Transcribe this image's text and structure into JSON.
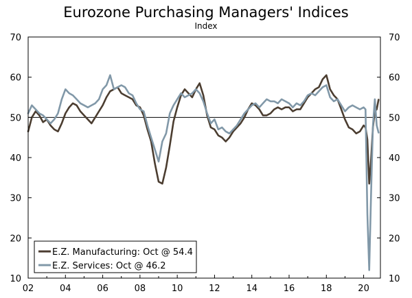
{
  "chart_data": {
    "type": "line",
    "title": "Eurozone Purchasing Managers' Indices",
    "subtitle": "Index",
    "ylim": [
      10,
      70
    ],
    "yticks": [
      10,
      20,
      30,
      40,
      50,
      60,
      70
    ],
    "xlim": [
      2002,
      2020.9
    ],
    "xticks": [
      2002,
      2004,
      2006,
      2008,
      2010,
      2012,
      2014,
      2016,
      2018,
      2020
    ],
    "xtick_labels": [
      "02",
      "04",
      "06",
      "08",
      "10",
      "12",
      "14",
      "16",
      "18",
      "20"
    ],
    "reference_line": 50,
    "dual_y_axis": true,
    "grid": false,
    "legend_position": "bottom-left",
    "series": [
      {
        "name": "E.Z. Manufacturing: Oct @ 54.4",
        "color": "#4b3d30",
        "points": [
          [
            2002.0,
            46.5
          ],
          [
            2002.2,
            50.0
          ],
          [
            2002.4,
            51.5
          ],
          [
            2002.6,
            50.5
          ],
          [
            2002.8,
            48.8
          ],
          [
            2003.0,
            49.5
          ],
          [
            2003.2,
            48.0
          ],
          [
            2003.4,
            47.0
          ],
          [
            2003.6,
            46.5
          ],
          [
            2003.8,
            48.5
          ],
          [
            2004.0,
            51.0
          ],
          [
            2004.2,
            52.5
          ],
          [
            2004.4,
            53.5
          ],
          [
            2004.6,
            53.0
          ],
          [
            2004.8,
            51.5
          ],
          [
            2005.0,
            50.5
          ],
          [
            2005.2,
            49.5
          ],
          [
            2005.4,
            48.5
          ],
          [
            2005.6,
            50.0
          ],
          [
            2005.8,
            51.5
          ],
          [
            2006.0,
            53.0
          ],
          [
            2006.2,
            55.0
          ],
          [
            2006.4,
            56.5
          ],
          [
            2006.6,
            57.0
          ],
          [
            2006.8,
            57.5
          ],
          [
            2007.0,
            56.0
          ],
          [
            2007.2,
            55.5
          ],
          [
            2007.4,
            55.0
          ],
          [
            2007.6,
            54.5
          ],
          [
            2007.8,
            53.0
          ],
          [
            2008.0,
            52.5
          ],
          [
            2008.2,
            50.5
          ],
          [
            2008.4,
            47.0
          ],
          [
            2008.6,
            44.0
          ],
          [
            2008.8,
            38.5
          ],
          [
            2009.0,
            34.0
          ],
          [
            2009.2,
            33.5
          ],
          [
            2009.4,
            37.5
          ],
          [
            2009.6,
            43.0
          ],
          [
            2009.8,
            49.0
          ],
          [
            2010.0,
            52.5
          ],
          [
            2010.2,
            55.5
          ],
          [
            2010.4,
            57.0
          ],
          [
            2010.6,
            56.0
          ],
          [
            2010.8,
            55.0
          ],
          [
            2011.0,
            57.0
          ],
          [
            2011.2,
            58.5
          ],
          [
            2011.4,
            55.5
          ],
          [
            2011.6,
            50.5
          ],
          [
            2011.8,
            47.5
          ],
          [
            2012.0,
            47.0
          ],
          [
            2012.2,
            45.5
          ],
          [
            2012.4,
            45.0
          ],
          [
            2012.6,
            44.0
          ],
          [
            2012.8,
            45.0
          ],
          [
            2013.0,
            46.5
          ],
          [
            2013.2,
            47.5
          ],
          [
            2013.4,
            48.5
          ],
          [
            2013.6,
            50.0
          ],
          [
            2013.8,
            52.0
          ],
          [
            2014.0,
            53.5
          ],
          [
            2014.2,
            53.0
          ],
          [
            2014.4,
            52.0
          ],
          [
            2014.6,
            50.5
          ],
          [
            2014.8,
            50.5
          ],
          [
            2015.0,
            51.0
          ],
          [
            2015.2,
            52.0
          ],
          [
            2015.4,
            52.5
          ],
          [
            2015.6,
            52.0
          ],
          [
            2015.8,
            52.5
          ],
          [
            2016.0,
            52.5
          ],
          [
            2016.2,
            51.5
          ],
          [
            2016.4,
            52.0
          ],
          [
            2016.6,
            52.0
          ],
          [
            2016.8,
            53.5
          ],
          [
            2017.0,
            55.0
          ],
          [
            2017.2,
            56.0
          ],
          [
            2017.4,
            57.0
          ],
          [
            2017.6,
            57.5
          ],
          [
            2017.8,
            59.5
          ],
          [
            2018.0,
            60.5
          ],
          [
            2018.2,
            57.0
          ],
          [
            2018.4,
            55.5
          ],
          [
            2018.6,
            54.5
          ],
          [
            2018.8,
            52.0
          ],
          [
            2019.0,
            49.5
          ],
          [
            2019.2,
            47.5
          ],
          [
            2019.4,
            47.0
          ],
          [
            2019.6,
            46.0
          ],
          [
            2019.8,
            46.5
          ],
          [
            2020.0,
            48.0
          ],
          [
            2020.1,
            47.5
          ],
          [
            2020.2,
            44.5
          ],
          [
            2020.3,
            33.5
          ],
          [
            2020.4,
            39.5
          ],
          [
            2020.5,
            47.5
          ],
          [
            2020.6,
            51.5
          ],
          [
            2020.7,
            52.0
          ],
          [
            2020.8,
            54.4
          ]
        ]
      },
      {
        "name": "E.Z. Services: Oct @ 46.2",
        "color": "#8198a8",
        "points": [
          [
            2002.0,
            51.0
          ],
          [
            2002.2,
            53.0
          ],
          [
            2002.4,
            52.0
          ],
          [
            2002.6,
            51.0
          ],
          [
            2002.8,
            50.5
          ],
          [
            2003.0,
            49.5
          ],
          [
            2003.2,
            48.5
          ],
          [
            2003.4,
            49.5
          ],
          [
            2003.6,
            51.0
          ],
          [
            2003.8,
            54.5
          ],
          [
            2004.0,
            57.0
          ],
          [
            2004.2,
            56.0
          ],
          [
            2004.4,
            55.5
          ],
          [
            2004.6,
            54.5
          ],
          [
            2004.8,
            53.5
          ],
          [
            2005.0,
            53.0
          ],
          [
            2005.2,
            52.5
          ],
          [
            2005.4,
            53.0
          ],
          [
            2005.6,
            53.5
          ],
          [
            2005.8,
            54.5
          ],
          [
            2006.0,
            57.0
          ],
          [
            2006.2,
            58.0
          ],
          [
            2006.4,
            60.5
          ],
          [
            2006.6,
            57.0
          ],
          [
            2006.8,
            57.5
          ],
          [
            2007.0,
            58.0
          ],
          [
            2007.2,
            57.5
          ],
          [
            2007.4,
            56.0
          ],
          [
            2007.6,
            55.5
          ],
          [
            2007.8,
            53.5
          ],
          [
            2008.0,
            52.0
          ],
          [
            2008.2,
            51.5
          ],
          [
            2008.4,
            48.0
          ],
          [
            2008.6,
            45.0
          ],
          [
            2008.8,
            42.0
          ],
          [
            2009.0,
            39.0
          ],
          [
            2009.2,
            44.0
          ],
          [
            2009.4,
            46.0
          ],
          [
            2009.6,
            51.0
          ],
          [
            2009.8,
            53.0
          ],
          [
            2010.0,
            54.5
          ],
          [
            2010.2,
            56.0
          ],
          [
            2010.4,
            55.0
          ],
          [
            2010.6,
            55.5
          ],
          [
            2010.8,
            56.0
          ],
          [
            2011.0,
            57.0
          ],
          [
            2011.2,
            56.0
          ],
          [
            2011.4,
            54.0
          ],
          [
            2011.6,
            51.0
          ],
          [
            2011.8,
            48.5
          ],
          [
            2012.0,
            49.5
          ],
          [
            2012.2,
            47.0
          ],
          [
            2012.4,
            47.5
          ],
          [
            2012.6,
            46.5
          ],
          [
            2012.8,
            46.0
          ],
          [
            2013.0,
            47.0
          ],
          [
            2013.2,
            48.0
          ],
          [
            2013.4,
            49.5
          ],
          [
            2013.6,
            51.0
          ],
          [
            2013.8,
            52.0
          ],
          [
            2014.0,
            53.0
          ],
          [
            2014.2,
            53.5
          ],
          [
            2014.4,
            52.5
          ],
          [
            2014.6,
            53.5
          ],
          [
            2014.8,
            54.5
          ],
          [
            2015.0,
            54.0
          ],
          [
            2015.2,
            54.0
          ],
          [
            2015.4,
            53.5
          ],
          [
            2015.6,
            54.5
          ],
          [
            2015.8,
            54.0
          ],
          [
            2016.0,
            53.5
          ],
          [
            2016.2,
            52.5
          ],
          [
            2016.4,
            53.5
          ],
          [
            2016.6,
            53.0
          ],
          [
            2016.8,
            54.0
          ],
          [
            2017.0,
            55.5
          ],
          [
            2017.2,
            56.0
          ],
          [
            2017.4,
            55.5
          ],
          [
            2017.6,
            56.5
          ],
          [
            2017.8,
            57.5
          ],
          [
            2018.0,
            58.0
          ],
          [
            2018.2,
            55.0
          ],
          [
            2018.4,
            54.0
          ],
          [
            2018.6,
            54.5
          ],
          [
            2018.8,
            53.0
          ],
          [
            2019.0,
            51.5
          ],
          [
            2019.2,
            52.5
          ],
          [
            2019.4,
            53.0
          ],
          [
            2019.6,
            52.5
          ],
          [
            2019.8,
            52.0
          ],
          [
            2020.0,
            52.5
          ],
          [
            2020.1,
            52.0
          ],
          [
            2020.2,
            26.0
          ],
          [
            2020.3,
            12.0
          ],
          [
            2020.4,
            31.0
          ],
          [
            2020.5,
            48.0
          ],
          [
            2020.6,
            54.5
          ],
          [
            2020.7,
            48.0
          ],
          [
            2020.8,
            46.2
          ]
        ]
      }
    ]
  }
}
